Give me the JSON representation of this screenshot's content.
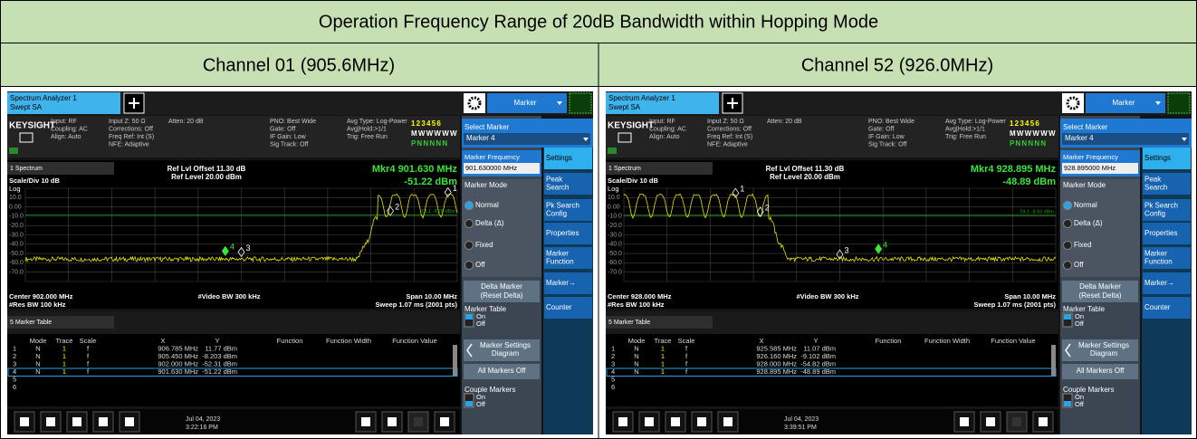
{
  "header": {
    "title": "Operation Frequency Range of 20dB Bandwidth within Hopping Mode"
  },
  "columns": [
    {
      "heading": "Channel 01 (905.6MHz)",
      "screen": {
        "tab": [
          "Spectrum Analyzer 1",
          "Swept SA"
        ],
        "menu": "Marker",
        "brand": "KEYSIGHT",
        "info": [
          [
            "Input: RF",
            "Coupling: AC",
            "Align: Auto"
          ],
          [
            "Input Z: 50 Ω",
            "Corrections: Off",
            "Freq Ref: Int (S)",
            "NFE: Adaptive"
          ],
          [
            "Atten: 20 dB"
          ],
          [
            "PNO: Best Wide",
            "Gate: Off",
            "IF Gain: Low",
            "Sig Track: Off"
          ],
          [
            "Avg Type: Log-Power",
            "Avg|Hold:>1/1",
            "Trig: Free Run"
          ]
        ],
        "trace_status": [
          "1 2 3 4 5 6",
          "M W W W W W",
          "P N N N N N"
        ],
        "window": "1 Spectrum",
        "ref_offset": "Ref Lvl Offset 11.30 dB",
        "ref_level": "Ref Level 20.00 dBm",
        "marker_readout": [
          "Mkr4  901.630 MHz",
          "-51.22 dBm"
        ],
        "scale": "Scale/Div 10 dB",
        "log": "Log",
        "yticks": [
          "10.0",
          "0.00",
          "-10.0",
          "-20.0",
          "-30.0",
          "-40.0",
          "-50.0",
          "-60.0",
          "-70.0"
        ],
        "display_line": "DL1 -8.78 dBm",
        "center": "Center 902.000 MHz",
        "rbw": "#Res BW 100 kHz",
        "vbw": "#Video BW 300 kHz",
        "span": "Span 10.00 MHz",
        "sweep": "Sweep 1.07 ms (2001 pts)",
        "table_window": "5 Marker Table",
        "table_header": [
          "Mode",
          "Trace",
          "Scale",
          "X",
          "Y",
          "Function",
          "Function Width",
          "Function Value"
        ],
        "table_rows": [
          [
            "1",
            "N",
            "1",
            "f",
            "906.785 MHz",
            "11.77 dBm"
          ],
          [
            "2",
            "N",
            "1",
            "f",
            "905.450 MHz",
            "-8.203 dBm"
          ],
          [
            "3",
            "N",
            "1",
            "f",
            "902.000 MHz",
            "-52.31 dBm"
          ],
          [
            "4",
            "N",
            "1",
            "f",
            "901.630 MHz",
            "-51.22 dBm"
          ],
          [
            "5"
          ],
          [
            "6"
          ]
        ],
        "date": "Jul 04, 2023",
        "time": "3:22:16 PM",
        "side": {
          "select_marker": "Select Marker",
          "marker_sel": "Marker 4",
          "freq_label": "Marker Frequency",
          "freq_value": "901.630000 MHz",
          "mode_label": "Marker Mode",
          "modes": [
            "Normal",
            "Delta (Δ)",
            "Fixed",
            "Off"
          ],
          "delta": [
            "Delta Marker",
            "(Reset Delta)"
          ],
          "table_label": "Marker Table",
          "on": "On",
          "off": "Off",
          "settings_diagram": [
            "Marker Settings",
            "Diagram"
          ],
          "all_off": "All Markers Off",
          "couple": "Couple Markers"
        },
        "softkeys": [
          [
            "Settings"
          ],
          [
            "Peak",
            "Search"
          ],
          [
            "Pk Search",
            "Config"
          ],
          [
            "Properties"
          ],
          [
            "Marker",
            "Function"
          ],
          [
            "Marker→"
          ],
          [
            "Counter"
          ]
        ]
      }
    },
    {
      "heading": "Channel 52 (926.0MHz)",
      "screen": {
        "tab": [
          "Spectrum Analyzer 1",
          "Swept SA"
        ],
        "menu": "Marker",
        "brand": "KEYSIGHT",
        "info": [
          [
            "Input: RF",
            "Coupling: AC",
            "Align: Auto"
          ],
          [
            "Input Z: 50 Ω",
            "Corrections: Off",
            "Freq Ref: Int (S)",
            "NFE: Adaptive"
          ],
          [
            "Atten: 20 dB"
          ],
          [
            "PNO: Best Wide",
            "Gate: Off",
            "IF Gain: Low",
            "Sig Track: Off"
          ],
          [
            "Avg Type: Log-Power",
            "Avg|Hold:>1/1",
            "Trig: Free Run"
          ]
        ],
        "trace_status": [
          "1 2 3 4 5 6",
          "M W W W W W",
          "P N N N N N"
        ],
        "window": "1 Spectrum",
        "ref_offset": "Ref Lvl Offset 11.30 dB",
        "ref_level": "Ref Level 20.00 dBm",
        "marker_readout": [
          "Mkr4  928.895 MHz",
          "-48.89 dBm"
        ],
        "scale": "Scale/Div 10 dB",
        "log": "Log",
        "yticks": [
          "10.0",
          "0.00",
          "-10.0",
          "-20.0",
          "-30.0",
          "-40.0",
          "-50.0",
          "-60.0",
          "-70.0"
        ],
        "display_line": "DL1 -8.93 dBm",
        "center": "Center 928.000 MHz",
        "rbw": "#Res BW 100 kHz",
        "vbw": "#Video BW 300 kHz",
        "span": "Span 10.00 MHz",
        "sweep": "Sweep 1.07 ms (2001 pts)",
        "table_window": "5 Marker Table",
        "table_header": [
          "Mode",
          "Trace",
          "Scale",
          "X",
          "Y",
          "Function",
          "Function Width",
          "Function Value"
        ],
        "table_rows": [
          [
            "1",
            "N",
            "1",
            "f",
            "925.585 MHz",
            "11.07 dBm"
          ],
          [
            "2",
            "N",
            "1",
            "f",
            "926.160 MHz",
            "-9.102 dBm"
          ],
          [
            "3",
            "N",
            "1",
            "f",
            "928.000 MHz",
            "-54.82 dBm"
          ],
          [
            "4",
            "N",
            "1",
            "f",
            "928.895 MHz",
            "-48.89 dBm"
          ],
          [
            "5"
          ],
          [
            "6"
          ]
        ],
        "date": "Jul 04, 2023",
        "time": "3:39:51 PM",
        "side": {
          "select_marker": "Select Marker",
          "marker_sel": "Marker 4",
          "freq_label": "Marker Frequency",
          "freq_value": "928.895000 MHz",
          "mode_label": "Marker Mode",
          "modes": [
            "Normal",
            "Delta (Δ)",
            "Fixed",
            "Off"
          ],
          "delta": [
            "Delta Marker",
            "(Reset Delta)"
          ],
          "table_label": "Marker Table",
          "on": "On",
          "off": "Off",
          "settings_diagram": [
            "Marker Settings",
            "Diagram"
          ],
          "all_off": "All Markers Off",
          "couple": "Couple Markers"
        },
        "softkeys": [
          [
            "Settings"
          ],
          [
            "Peak",
            "Search"
          ],
          [
            "Pk Search",
            "Config"
          ],
          [
            "Properties"
          ],
          [
            "Marker",
            "Function"
          ],
          [
            "Marker→"
          ],
          [
            "Counter"
          ]
        ]
      }
    }
  ]
}
